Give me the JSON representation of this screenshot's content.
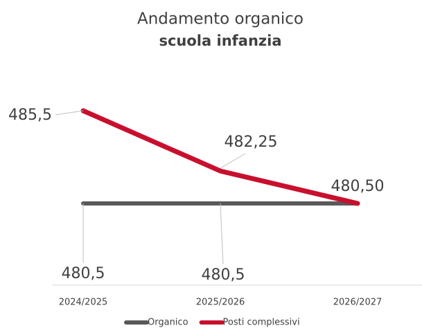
{
  "chart_data": {
    "type": "line",
    "title": "Andamento organico",
    "subtitle": "scuola infanzia",
    "categories": [
      "2024/2025",
      "2025/2026",
      "2026/2027"
    ],
    "series": [
      {
        "name": "Organico",
        "color": "#595959",
        "values": [
          480.5,
          480.5,
          480.5
        ],
        "value_labels": [
          "480,5",
          "480,5",
          null
        ]
      },
      {
        "name": "Posti complessivi",
        "color": "#c8102e",
        "values": [
          485.5,
          482.25,
          480.5
        ],
        "value_labels": [
          "485,5",
          "482,25",
          "480,50"
        ]
      }
    ]
  }
}
